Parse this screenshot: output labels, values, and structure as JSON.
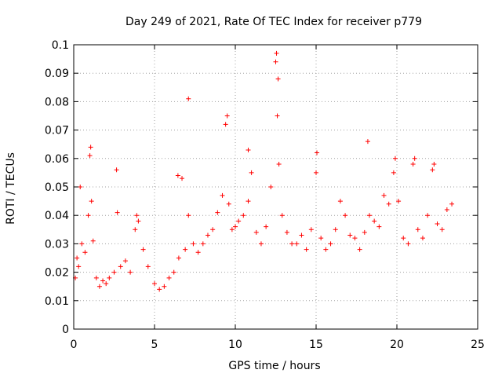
{
  "chart_data": {
    "type": "scatter",
    "title": "Day 249 of 2021, Rate Of TEC Index for receiver p779",
    "xlabel": "GPS time / hours",
    "ylabel": "ROTI / TECUs",
    "xlim": [
      0,
      25
    ],
    "ylim": [
      0,
      0.1
    ],
    "grid": true,
    "marker": "+",
    "colors": {
      "points": "#ff0000",
      "grid": "#a0a0a0",
      "axes": "#000000"
    },
    "x_ticks": [
      {
        "value": 0,
        "label": "0"
      },
      {
        "value": 5,
        "label": "5"
      },
      {
        "value": 10,
        "label": "10"
      },
      {
        "value": 15,
        "label": "15"
      },
      {
        "value": 20,
        "label": "20"
      },
      {
        "value": 25,
        "label": "25"
      }
    ],
    "y_ticks": [
      {
        "value": 0,
        "label": "0"
      },
      {
        "value": 0.01,
        "label": "0.01"
      },
      {
        "value": 0.02,
        "label": "0.02"
      },
      {
        "value": 0.03,
        "label": "0.03"
      },
      {
        "value": 0.04,
        "label": "0.04"
      },
      {
        "value": 0.05,
        "label": "0.05"
      },
      {
        "value": 0.06,
        "label": "0.06"
      },
      {
        "value": 0.07,
        "label": "0.07"
      },
      {
        "value": 0.08,
        "label": "0.08"
      },
      {
        "value": 0.09,
        "label": "0.09"
      },
      {
        "value": 0.1,
        "label": "0.1"
      }
    ],
    "series": [
      {
        "name": "ROTI",
        "x": [
          0.1,
          0.2,
          0.3,
          0.5,
          0.7,
          0.9,
          1.0,
          1.1,
          1.2,
          1.4,
          1.6,
          1.8,
          2.0,
          2.2,
          2.5,
          2.7,
          2.9,
          3.2,
          3.5,
          3.8,
          4.0,
          4.3,
          4.6,
          5.0,
          5.3,
          5.6,
          5.9,
          6.2,
          6.5,
          6.7,
          6.9,
          7.1,
          7.4,
          7.7,
          8.0,
          8.3,
          8.6,
          8.9,
          9.2,
          9.4,
          9.6,
          9.8,
          10.0,
          10.2,
          10.5,
          10.8,
          11.0,
          11.3,
          11.6,
          11.9,
          12.2,
          12.5,
          12.6,
          12.7,
          12.9,
          13.2,
          13.5,
          13.8,
          14.1,
          14.4,
          14.7,
          15.0,
          15.3,
          15.6,
          15.9,
          16.2,
          16.5,
          16.8,
          17.1,
          17.4,
          17.7,
          18.0,
          18.3,
          18.6,
          18.9,
          19.2,
          19.5,
          19.8,
          20.1,
          20.4,
          20.7,
          21.0,
          21.3,
          21.6,
          21.9,
          22.2,
          22.5,
          22.8,
          23.1,
          23.4,
          0.4,
          1.05,
          2.65,
          6.45,
          7.1,
          9.5,
          10.8,
          12.55,
          12.65,
          18.2,
          19.9,
          21.1,
          22.3,
          15.05,
          3.9
        ],
        "y": [
          0.018,
          0.025,
          0.022,
          0.03,
          0.027,
          0.04,
          0.061,
          0.045,
          0.031,
          0.018,
          0.015,
          0.017,
          0.016,
          0.018,
          0.02,
          0.041,
          0.022,
          0.024,
          0.02,
          0.035,
          0.038,
          0.028,
          0.022,
          0.016,
          0.014,
          0.015,
          0.018,
          0.02,
          0.025,
          0.053,
          0.028,
          0.04,
          0.03,
          0.027,
          0.03,
          0.033,
          0.035,
          0.041,
          0.047,
          0.072,
          0.044,
          0.035,
          0.036,
          0.038,
          0.04,
          0.045,
          0.055,
          0.034,
          0.03,
          0.036,
          0.05,
          0.094,
          0.075,
          0.058,
          0.04,
          0.034,
          0.03,
          0.03,
          0.033,
          0.028,
          0.035,
          0.055,
          0.032,
          0.028,
          0.03,
          0.035,
          0.045,
          0.04,
          0.033,
          0.032,
          0.028,
          0.034,
          0.04,
          0.038,
          0.036,
          0.047,
          0.044,
          0.055,
          0.045,
          0.032,
          0.03,
          0.058,
          0.035,
          0.032,
          0.04,
          0.056,
          0.037,
          0.035,
          0.042,
          0.044,
          0.05,
          0.064,
          0.056,
          0.054,
          0.081,
          0.075,
          0.063,
          0.097,
          0.088,
          0.066,
          0.06,
          0.06,
          0.058,
          0.062,
          0.04
        ]
      }
    ]
  }
}
